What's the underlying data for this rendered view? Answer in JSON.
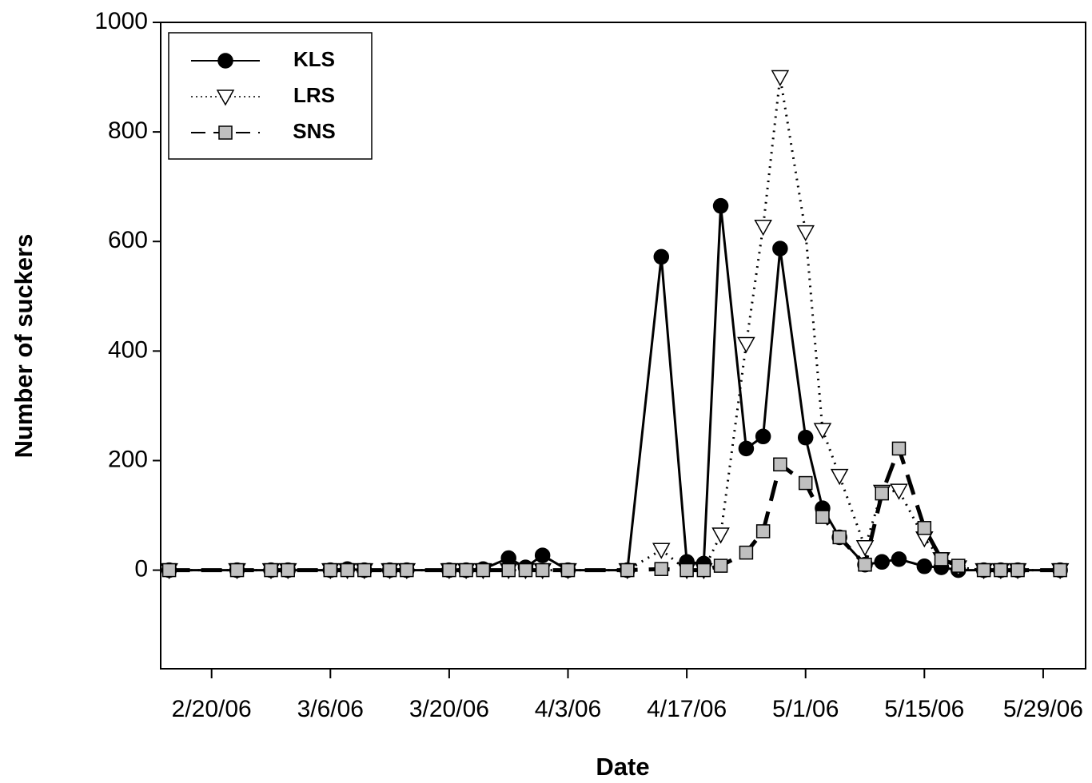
{
  "chart_data": {
    "type": "line",
    "x_label": "Date",
    "y_label": "Number of suckers",
    "x": [
      "2/15/06",
      "2/23/06",
      "2/27/06",
      "3/1/06",
      "3/6/06",
      "3/8/06",
      "3/10/06",
      "3/13/06",
      "3/15/06",
      "3/20/06",
      "3/22/06",
      "3/24/06",
      "3/27/06",
      "3/29/06",
      "3/31/06",
      "4/3/06",
      "4/10/06",
      "4/14/06",
      "4/17/06",
      "4/19/06",
      "4/21/06",
      "4/24/06",
      "4/26/06",
      "4/28/06",
      "5/1/06",
      "5/3/06",
      "5/5/06",
      "5/8/06",
      "5/10/06",
      "5/12/06",
      "5/15/06",
      "5/17/06",
      "5/19/06",
      "5/22/06",
      "5/24/06",
      "5/26/06",
      "5/31/06"
    ],
    "series": [
      {
        "name": "KLS",
        "color": "#000000",
        "marker": "circle",
        "line_style": "solid",
        "values": [
          0,
          0,
          0,
          0,
          0,
          2,
          0,
          0,
          0,
          0,
          0,
          2,
          22,
          5,
          27,
          0,
          0,
          572,
          15,
          12,
          665,
          222,
          244,
          587,
          242,
          113,
          60,
          10,
          15,
          20,
          7,
          5,
          0,
          0,
          0,
          0,
          0
        ]
      },
      {
        "name": "LRS",
        "color": "#ffffff",
        "marker": "triangle-down",
        "line_style": "dotted",
        "values": [
          0,
          0,
          0,
          0,
          0,
          0,
          0,
          0,
          0,
          0,
          0,
          0,
          0,
          0,
          0,
          0,
          0,
          37,
          0,
          0,
          65,
          413,
          627,
          900,
          617,
          256,
          172,
          42,
          143,
          145,
          58,
          20,
          5,
          0,
          0,
          0,
          0
        ]
      },
      {
        "name": "SNS",
        "color": "#c0c0c0",
        "marker": "square",
        "line_style": "dashed",
        "values": [
          0,
          0,
          0,
          0,
          0,
          0,
          0,
          0,
          0,
          0,
          0,
          0,
          0,
          0,
          0,
          0,
          0,
          2,
          0,
          0,
          8,
          32,
          71,
          193,
          159,
          97,
          60,
          10,
          140,
          222,
          77,
          20,
          8,
          0,
          0,
          0,
          0
        ]
      }
    ],
    "xlim": [
      "2/14/06",
      "6/3/06"
    ],
    "xticks": [
      "2/20/06",
      "3/6/06",
      "3/20/06",
      "4/3/06",
      "4/17/06",
      "5/1/06",
      "5/15/06",
      "5/29/06"
    ],
    "ylim": [
      -180,
      1000
    ],
    "yticks": [
      0,
      200,
      400,
      600,
      800,
      1000
    ],
    "legend": "upper left",
    "grid": false
  }
}
